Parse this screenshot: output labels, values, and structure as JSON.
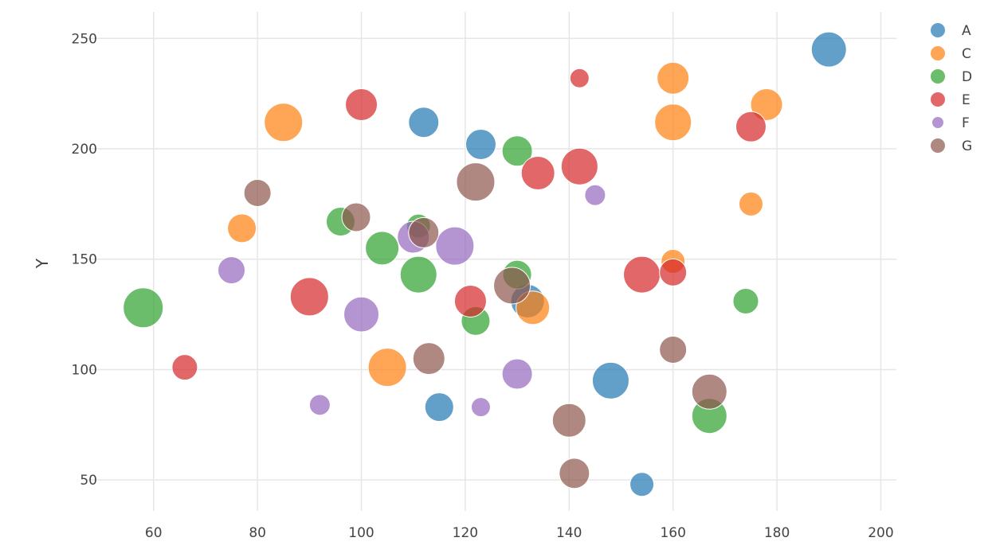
{
  "chart_data": {
    "type": "scatter",
    "xlabel": "",
    "ylabel": "Y",
    "xlim": [
      47,
      203
    ],
    "ylim": [
      36,
      262
    ],
    "xticks": [
      60,
      80,
      100,
      120,
      140,
      160,
      180,
      200
    ],
    "yticks": [
      50,
      100,
      150,
      200,
      250
    ],
    "grid": true,
    "legend_position": "top-right",
    "bubble_sizes": true,
    "series": [
      {
        "name": "A",
        "color": "#1f77b4",
        "points": [
          {
            "x": 112,
            "y": 212,
            "size": 19
          },
          {
            "x": 123,
            "y": 202,
            "size": 19
          },
          {
            "x": 132,
            "y": 131,
            "size": 21
          },
          {
            "x": 115,
            "y": 83,
            "size": 18
          },
          {
            "x": 148,
            "y": 95,
            "size": 23
          },
          {
            "x": 154,
            "y": 48,
            "size": 15
          },
          {
            "x": 190,
            "y": 245,
            "size": 22
          }
        ]
      },
      {
        "name": "C",
        "color": "#ff7f0e",
        "points": [
          {
            "x": 85,
            "y": 212,
            "size": 24
          },
          {
            "x": 77,
            "y": 164,
            "size": 18
          },
          {
            "x": 105,
            "y": 101,
            "size": 24
          },
          {
            "x": 133,
            "y": 128,
            "size": 21
          },
          {
            "x": 160,
            "y": 232,
            "size": 20
          },
          {
            "x": 160,
            "y": 212,
            "size": 23
          },
          {
            "x": 160,
            "y": 149,
            "size": 15
          },
          {
            "x": 175,
            "y": 175,
            "size": 15
          },
          {
            "x": 178,
            "y": 220,
            "size": 20
          }
        ]
      },
      {
        "name": "D",
        "color": "#2ca02c",
        "points": [
          {
            "x": 58,
            "y": 128,
            "size": 25
          },
          {
            "x": 96,
            "y": 167,
            "size": 18
          },
          {
            "x": 104,
            "y": 155,
            "size": 21
          },
          {
            "x": 111,
            "y": 165,
            "size": 15
          },
          {
            "x": 111,
            "y": 143,
            "size": 23
          },
          {
            "x": 122,
            "y": 122,
            "size": 18
          },
          {
            "x": 130,
            "y": 199,
            "size": 19
          },
          {
            "x": 130,
            "y": 143,
            "size": 18
          },
          {
            "x": 167,
            "y": 79,
            "size": 22
          },
          {
            "x": 174,
            "y": 131,
            "size": 16
          }
        ]
      },
      {
        "name": "E",
        "color": "#d62728",
        "points": [
          {
            "x": 66,
            "y": 101,
            "size": 16
          },
          {
            "x": 90,
            "y": 133,
            "size": 24
          },
          {
            "x": 100,
            "y": 220,
            "size": 20
          },
          {
            "x": 121,
            "y": 131,
            "size": 20
          },
          {
            "x": 134,
            "y": 189,
            "size": 21
          },
          {
            "x": 142,
            "y": 192,
            "size": 23
          },
          {
            "x": 142,
            "y": 232,
            "size": 12
          },
          {
            "x": 154,
            "y": 143,
            "size": 23
          },
          {
            "x": 160,
            "y": 144,
            "size": 17
          },
          {
            "x": 175,
            "y": 210,
            "size": 19
          }
        ]
      },
      {
        "name": "F",
        "color": "#9467bd",
        "points": [
          {
            "x": 75,
            "y": 145,
            "size": 17
          },
          {
            "x": 92,
            "y": 84,
            "size": 13
          },
          {
            "x": 100,
            "y": 125,
            "size": 22
          },
          {
            "x": 110,
            "y": 160,
            "size": 20
          },
          {
            "x": 118,
            "y": 156,
            "size": 24
          },
          {
            "x": 123,
            "y": 83,
            "size": 12
          },
          {
            "x": 130,
            "y": 98,
            "size": 19
          },
          {
            "x": 145,
            "y": 179,
            "size": 13
          }
        ]
      },
      {
        "name": "G",
        "color": "#8c564b",
        "points": [
          {
            "x": 80,
            "y": 180,
            "size": 17
          },
          {
            "x": 99,
            "y": 169,
            "size": 18
          },
          {
            "x": 112,
            "y": 162,
            "size": 19
          },
          {
            "x": 113,
            "y": 105,
            "size": 20
          },
          {
            "x": 122,
            "y": 185,
            "size": 24
          },
          {
            "x": 129,
            "y": 138,
            "size": 23
          },
          {
            "x": 140,
            "y": 77,
            "size": 21
          },
          {
            "x": 141,
            "y": 53,
            "size": 19
          },
          {
            "x": 160,
            "y": 109,
            "size": 17
          },
          {
            "x": 167,
            "y": 90,
            "size": 22
          }
        ]
      }
    ]
  }
}
